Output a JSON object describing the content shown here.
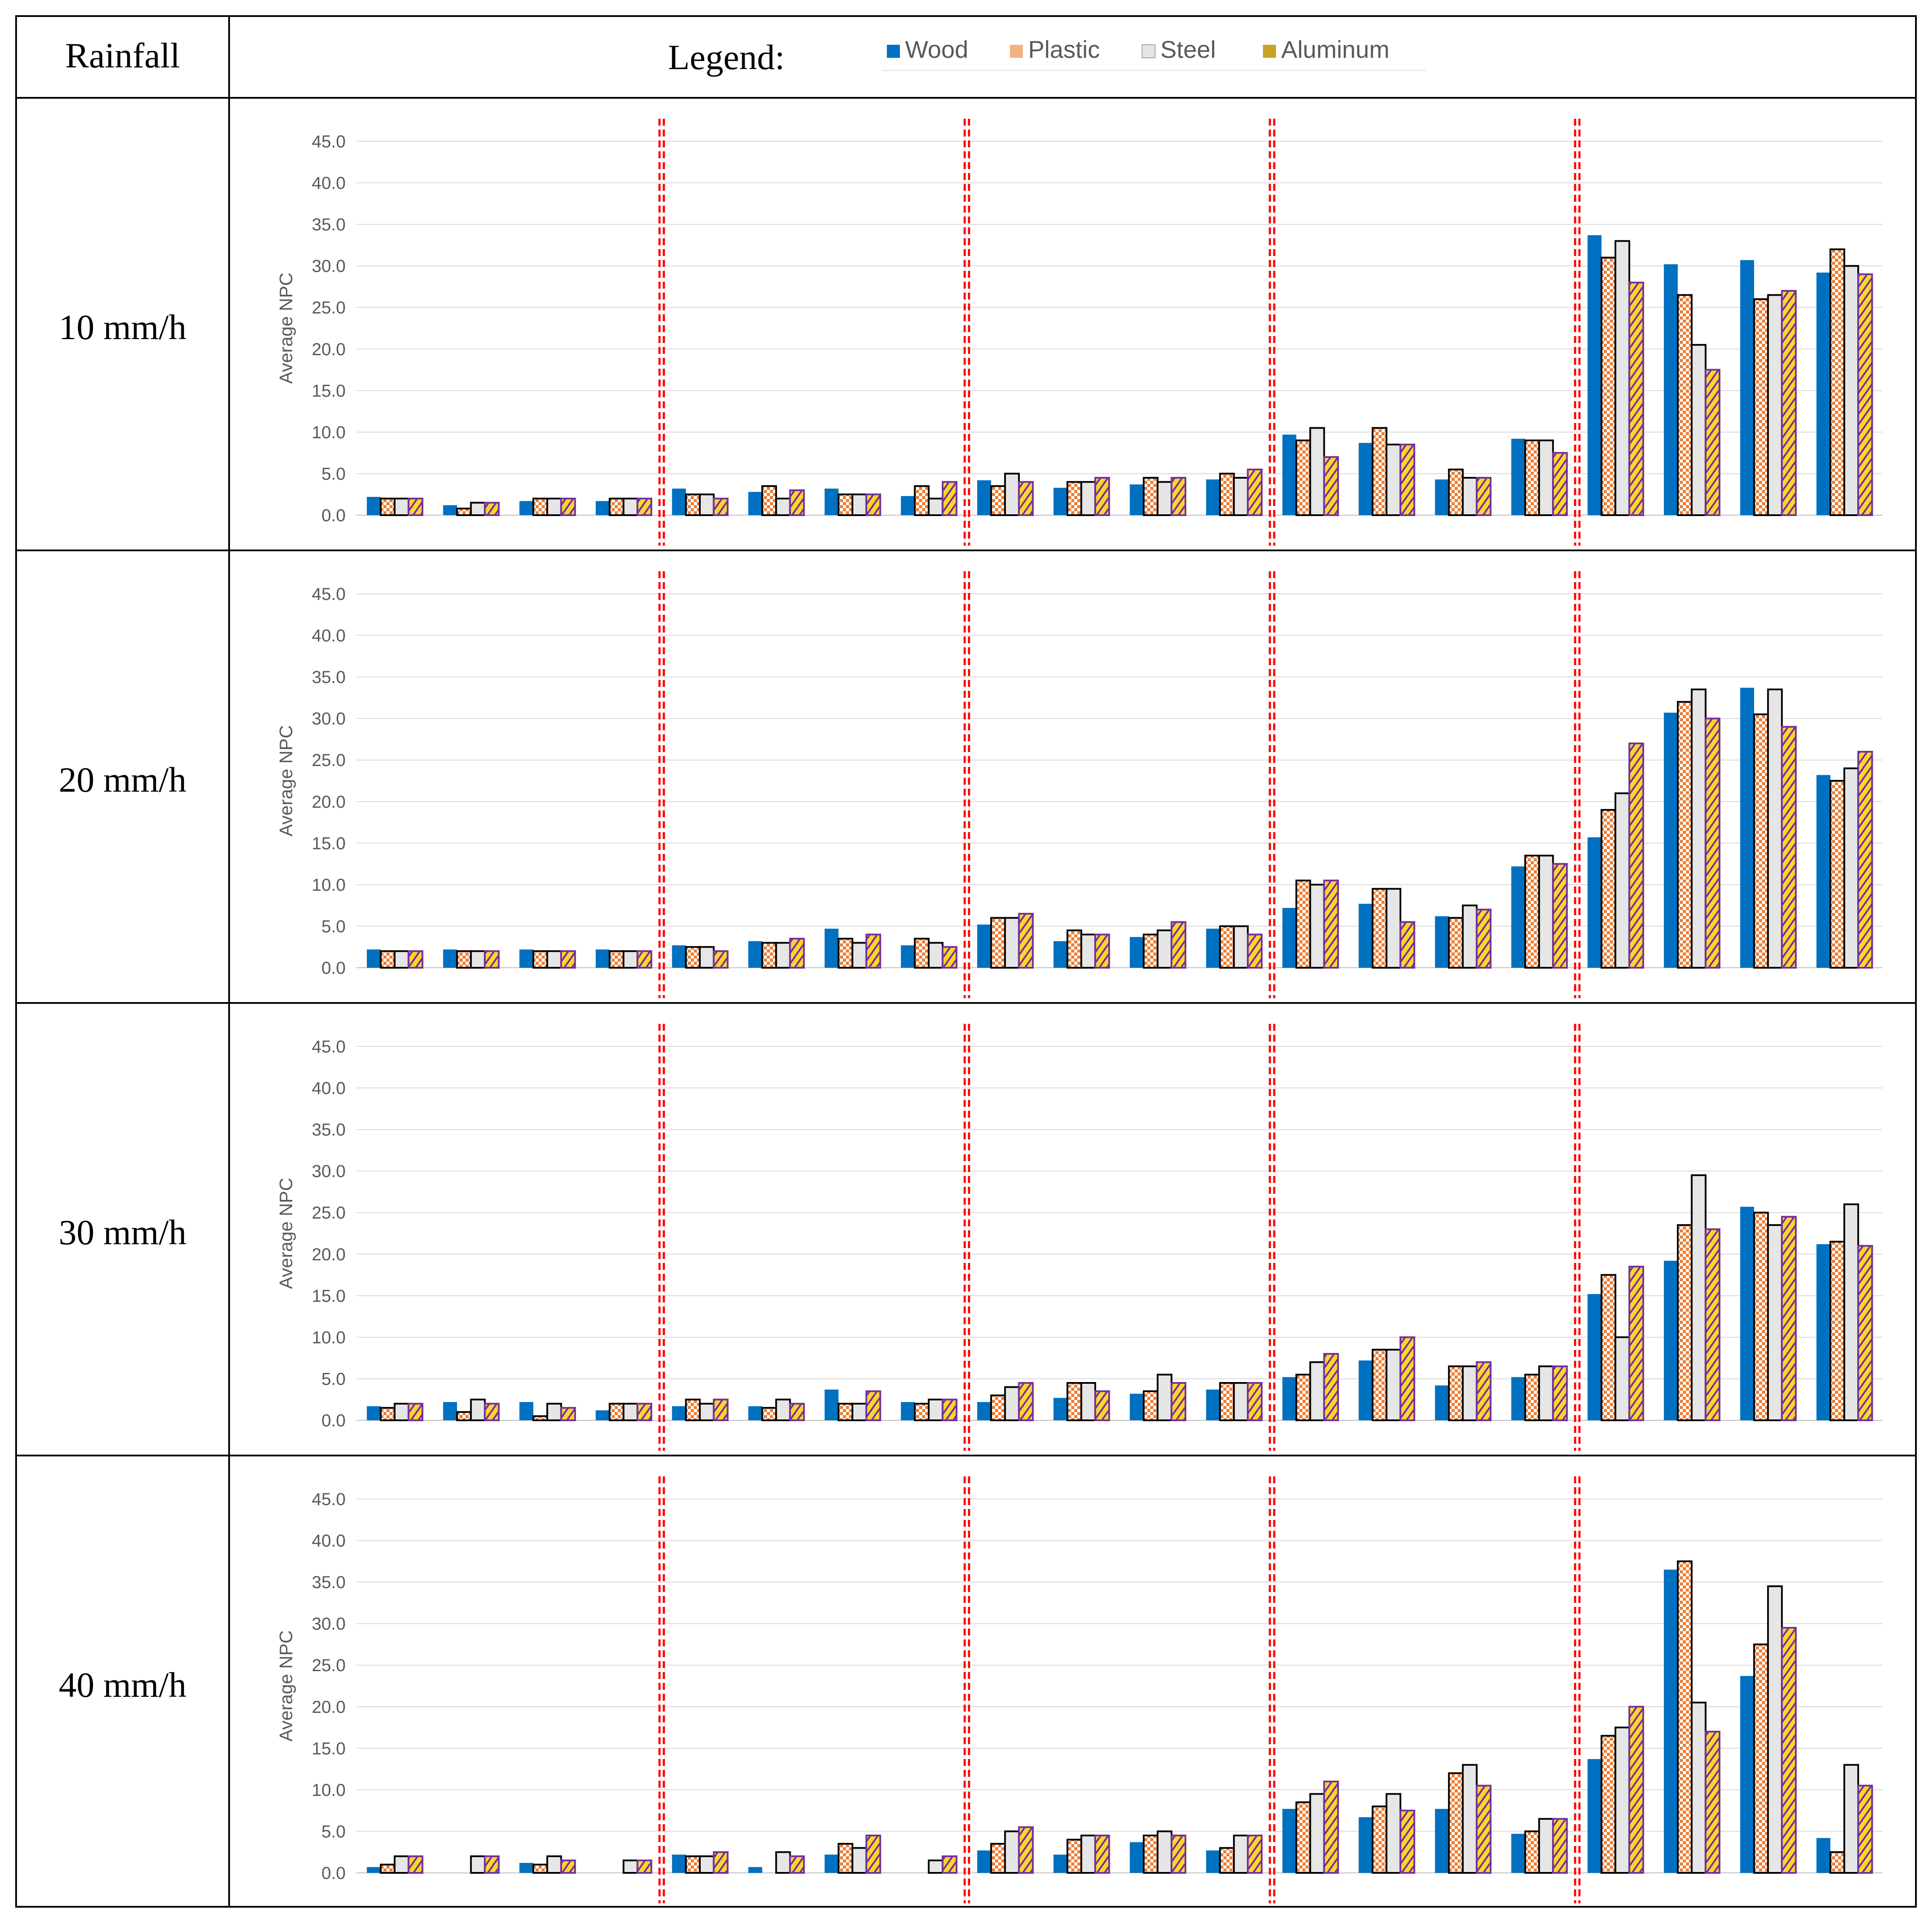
{
  "table": {
    "header_col1": "Rainfall",
    "legend_title": "Legend:"
  },
  "legend": [
    {
      "name": "Wood",
      "color": "#0070c0",
      "pattern": "solid"
    },
    {
      "name": "Plastic",
      "color": "#ed7d31",
      "pattern": "checker"
    },
    {
      "name": "Steel",
      "color": "#e7e6e6",
      "pattern": "solid-outlined"
    },
    {
      "name": "Aluminum",
      "color": "#ffd42a",
      "pattern": "hatch"
    }
  ],
  "colors": {
    "wood": "#0070c0",
    "plastic": "#ed7d31",
    "plastic_light": "#ffffff",
    "steel": "#e7e6e6",
    "aluminum": "#ffd42a",
    "aluminum_outline": "#7030a0",
    "separator": "#ff0000",
    "grid": "#d9d9d9",
    "axis_text": "#595959",
    "border": "#000000"
  },
  "chart_data": [
    {
      "type": "bar",
      "title": "10 mm/h",
      "ylabel": "Average NPC",
      "ylim": [
        0,
        45
      ],
      "yticks": [
        "0.0",
        "5.0",
        "10.0",
        "15.0",
        "20.0",
        "25.0",
        "30.0",
        "35.0",
        "40.0",
        "45.0"
      ],
      "groups_per_block": 4,
      "series": [
        {
          "name": "Wood",
          "values": [
            2.2,
            1.2,
            1.7,
            1.7,
            3.2,
            2.8,
            3.2,
            2.3,
            4.2,
            3.3,
            3.7,
            4.3,
            9.7,
            8.7,
            4.3,
            9.2,
            33.7,
            30.2,
            30.7,
            29.2
          ]
        },
        {
          "name": "Plastic",
          "values": [
            2.0,
            0.8,
            2.0,
            2.0,
            2.5,
            3.5,
            2.5,
            3.5,
            3.5,
            4.0,
            4.5,
            5.0,
            9.0,
            10.5,
            5.5,
            9.0,
            31.0,
            26.5,
            26.0,
            32.0
          ]
        },
        {
          "name": "Steel",
          "values": [
            2.0,
            1.5,
            2.0,
            2.0,
            2.5,
            2.0,
            2.5,
            2.0,
            5.0,
            4.0,
            4.0,
            4.5,
            10.5,
            8.5,
            4.5,
            9.0,
            33.0,
            20.5,
            26.5,
            30.0
          ]
        },
        {
          "name": "Aluminum",
          "values": [
            2.0,
            1.5,
            2.0,
            2.0,
            2.0,
            3.0,
            2.5,
            4.0,
            4.0,
            4.5,
            4.5,
            5.5,
            7.0,
            8.5,
            4.5,
            7.5,
            28.0,
            17.5,
            27.0,
            29.0
          ]
        }
      ]
    },
    {
      "type": "bar",
      "title": "20 mm/h",
      "ylabel": "Average NPC",
      "ylim": [
        0,
        45
      ],
      "yticks": [
        "0.0",
        "5.0",
        "10.0",
        "15.0",
        "20.0",
        "25.0",
        "30.0",
        "35.0",
        "40.0",
        "45.0"
      ],
      "groups_per_block": 4,
      "series": [
        {
          "name": "Wood",
          "values": [
            2.2,
            2.2,
            2.2,
            2.2,
            2.7,
            3.2,
            4.7,
            2.7,
            5.2,
            3.2,
            3.7,
            4.7,
            7.2,
            7.7,
            6.2,
            12.2,
            15.7,
            30.7,
            33.7,
            23.2
          ]
        },
        {
          "name": "Plastic",
          "values": [
            2.0,
            2.0,
            2.0,
            2.0,
            2.5,
            3.0,
            3.5,
            3.5,
            6.0,
            4.5,
            4.0,
            5.0,
            10.5,
            9.5,
            6.0,
            13.5,
            19.0,
            32.0,
            30.5,
            22.5
          ]
        },
        {
          "name": "Steel",
          "values": [
            2.0,
            2.0,
            2.0,
            2.0,
            2.5,
            3.0,
            3.0,
            3.0,
            6.0,
            4.0,
            4.5,
            5.0,
            10.0,
            9.5,
            7.5,
            13.5,
            21.0,
            33.5,
            33.5,
            24.0
          ]
        },
        {
          "name": "Aluminum",
          "values": [
            2.0,
            2.0,
            2.0,
            2.0,
            2.0,
            3.5,
            4.0,
            2.5,
            6.5,
            4.0,
            5.5,
            4.0,
            10.5,
            5.5,
            7.0,
            12.5,
            27.0,
            30.0,
            29.0,
            26.0
          ]
        }
      ]
    },
    {
      "type": "bar",
      "title": "30 mm/h",
      "ylabel": "Average NPC",
      "ylim": [
        0,
        45
      ],
      "yticks": [
        "0.0",
        "5.0",
        "10.0",
        "15.0",
        "20.0",
        "25.0",
        "30.0",
        "35.0",
        "40.0",
        "45.0"
      ],
      "groups_per_block": 4,
      "series": [
        {
          "name": "Wood",
          "values": [
            1.7,
            2.2,
            2.2,
            1.2,
            1.7,
            1.7,
            3.7,
            2.2,
            2.2,
            2.7,
            3.2,
            3.7,
            5.2,
            7.2,
            4.2,
            5.2,
            15.2,
            19.2,
            25.7,
            21.2
          ]
        },
        {
          "name": "Plastic",
          "values": [
            1.5,
            1.0,
            0.5,
            2.0,
            2.5,
            1.5,
            2.0,
            2.0,
            3.0,
            4.5,
            3.5,
            4.5,
            5.5,
            8.5,
            6.5,
            5.5,
            17.5,
            23.5,
            25.0,
            21.5
          ]
        },
        {
          "name": "Steel",
          "values": [
            2.0,
            2.5,
            2.0,
            2.0,
            2.0,
            2.5,
            2.0,
            2.5,
            4.0,
            4.5,
            5.5,
            4.5,
            7.0,
            8.5,
            6.5,
            6.5,
            10.0,
            29.5,
            23.5,
            26.0
          ]
        },
        {
          "name": "Aluminum",
          "values": [
            2.0,
            2.0,
            1.5,
            2.0,
            2.5,
            2.0,
            3.5,
            2.5,
            4.5,
            3.5,
            4.5,
            4.5,
            8.0,
            10.0,
            7.0,
            6.5,
            18.5,
            23.0,
            24.5,
            21.0
          ]
        }
      ]
    },
    {
      "type": "bar",
      "title": "40 mm/h",
      "ylabel": "Average NPC",
      "ylim": [
        0,
        45
      ],
      "yticks": [
        "0.0",
        "5.0",
        "10.0",
        "15.0",
        "20.0",
        "25.0",
        "30.0",
        "35.0",
        "40.0",
        "45.0"
      ],
      "groups_per_block": 4,
      "series": [
        {
          "name": "Wood",
          "values": [
            0.7,
            0.0,
            1.2,
            0.0,
            2.2,
            0.7,
            2.2,
            0.0,
            2.7,
            2.2,
            3.7,
            2.7,
            7.7,
            6.7,
            7.7,
            4.7,
            13.7,
            36.5,
            23.7,
            4.2
          ]
        },
        {
          "name": "Plastic",
          "values": [
            1.0,
            0.0,
            1.0,
            0.0,
            2.0,
            0.0,
            3.5,
            0.0,
            3.5,
            4.0,
            4.5,
            3.0,
            8.5,
            8.0,
            12.0,
            5.0,
            16.5,
            37.5,
            27.5,
            2.5
          ]
        },
        {
          "name": "Steel",
          "values": [
            2.0,
            2.0,
            2.0,
            1.5,
            2.0,
            2.5,
            3.0,
            1.5,
            5.0,
            4.5,
            5.0,
            4.5,
            9.5,
            9.5,
            13.0,
            6.5,
            17.5,
            20.5,
            34.5,
            13.0
          ]
        },
        {
          "name": "Aluminum",
          "values": [
            2.0,
            2.0,
            1.5,
            1.5,
            2.5,
            2.0,
            4.5,
            2.0,
            5.5,
            4.5,
            4.5,
            4.5,
            11.0,
            7.5,
            10.5,
            6.5,
            20.0,
            17.0,
            29.5,
            10.5
          ]
        }
      ]
    }
  ]
}
